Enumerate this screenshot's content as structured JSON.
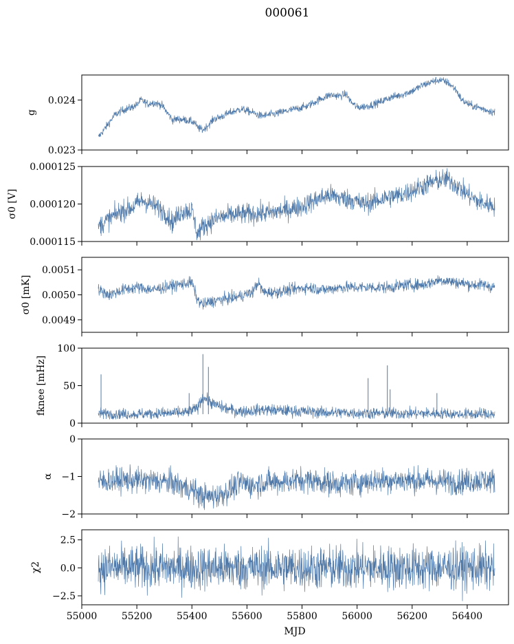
{
  "figure": {
    "title": "000061",
    "xlabel": "MJD",
    "line_color": "#4e78a8"
  },
  "chart_data": [
    {
      "type": "line",
      "ylabel": "g",
      "xlim": [
        55000,
        56550
      ],
      "ylim": [
        0.023,
        0.0245
      ],
      "yticks": [
        0.023,
        0.024
      ],
      "ytick_labels": [
        "0.023",
        "0.024"
      ],
      "series": [
        {
          "x": [
            55060,
            55080,
            55100,
            55120,
            55150,
            55180,
            55200,
            55215,
            55240,
            55260,
            55290,
            55310,
            55330,
            55350,
            55380,
            55410,
            55420,
            55440,
            55460,
            55480,
            55500,
            55540,
            55580,
            55620,
            55650,
            55700,
            55760,
            55820,
            55860,
            55900,
            55940,
            55960,
            55980,
            56000,
            56040,
            56080,
            56120,
            56160,
            56200,
            56240,
            56280,
            56300,
            56330,
            56360,
            56380,
            56410,
            56440,
            56470,
            56500
          ],
          "y": [
            0.02325,
            0.0234,
            0.02355,
            0.0237,
            0.0238,
            0.02385,
            0.0239,
            0.024,
            0.02392,
            0.02395,
            0.0239,
            0.02375,
            0.0236,
            0.02362,
            0.0236,
            0.02355,
            0.02345,
            0.0234,
            0.0235,
            0.02362,
            0.02365,
            0.02375,
            0.02382,
            0.02375,
            0.02368,
            0.02372,
            0.0238,
            0.02388,
            0.024,
            0.0241,
            0.02408,
            0.02412,
            0.02395,
            0.02385,
            0.02388,
            0.02395,
            0.02405,
            0.0241,
            0.02418,
            0.0243,
            0.02438,
            0.0244,
            0.02435,
            0.0242,
            0.024,
            0.0239,
            0.02385,
            0.0238,
            0.02375
          ],
          "noise": 4e-05
        }
      ]
    },
    {
      "type": "line",
      "ylabel": "σ0 [V]",
      "xlim": [
        55000,
        56550
      ],
      "ylim": [
        0.000115,
        0.000125
      ],
      "yticks": [
        0.000115,
        0.00012,
        0.000125
      ],
      "ytick_labels": [
        "0.000115",
        "0.000120",
        "0.000125"
      ],
      "series": [
        {
          "x": [
            55060,
            55100,
            55140,
            55180,
            55220,
            55250,
            55300,
            55330,
            55360,
            55400,
            55420,
            55440,
            55460,
            55500,
            55560,
            55620,
            55680,
            55740,
            55800,
            55860,
            55900,
            55940,
            55980,
            56020,
            56060,
            56100,
            56160,
            56200,
            56260,
            56300,
            56330,
            56360,
            56400,
            56440,
            56470,
            56500
          ],
          "y": [
            0.000117,
            0.000118,
            0.000119,
            0.0001195,
            0.0001205,
            0.00012,
            0.000119,
            0.0001175,
            0.000119,
            0.0001192,
            0.000116,
            0.000117,
            0.0001175,
            0.0001182,
            0.0001186,
            0.0001187,
            0.0001188,
            0.0001192,
            0.0001197,
            0.0001207,
            0.0001212,
            0.0001208,
            0.0001206,
            0.00012,
            0.0001203,
            0.0001208,
            0.0001212,
            0.0001218,
            0.0001227,
            0.0001232,
            0.0001233,
            0.0001225,
            0.0001213,
            0.0001203,
            0.00012,
            0.0001198
          ],
          "noise": 7e-07
        }
      ]
    },
    {
      "type": "line",
      "ylabel": "σ0 [mK]",
      "xlim": [
        55000,
        56550
      ],
      "ylim": [
        0.00485,
        0.00515
      ],
      "yticks": [
        0.0049,
        0.005,
        0.0051
      ],
      "ytick_labels": [
        "0.0049",
        "0.0050",
        "0.0051"
      ],
      "series": [
        {
          "x": [
            55060,
            55100,
            55150,
            55200,
            55260,
            55300,
            55350,
            55400,
            55420,
            55440,
            55460,
            55500,
            55560,
            55620,
            55640,
            55660,
            55700,
            55760,
            55820,
            55880,
            55940,
            56000,
            56060,
            56120,
            56180,
            56240,
            56300,
            56360,
            56420,
            56460,
            56500
          ],
          "y": [
            0.00502,
            0.005,
            0.00502,
            0.00503,
            0.00502,
            0.00503,
            0.00504,
            0.00505,
            0.00498,
            0.00496,
            0.00497,
            0.00498,
            0.00499,
            0.00501,
            0.00505,
            0.00501,
            0.00501,
            0.00502,
            0.00503,
            0.00502,
            0.00503,
            0.00503,
            0.00503,
            0.00503,
            0.00504,
            0.00504,
            0.00506,
            0.00505,
            0.00504,
            0.00504,
            0.00503
          ],
          "noise": 1.2e-05
        }
      ]
    },
    {
      "type": "line",
      "ylabel": "fknee [mHz]",
      "xlim": [
        55000,
        56550
      ],
      "ylim": [
        0,
        100
      ],
      "yticks": [
        0,
        50,
        100
      ],
      "ytick_labels": [
        "0",
        "50",
        "100"
      ],
      "series": [
        {
          "x": [
            55060,
            55120,
            55200,
            55300,
            55380,
            55420,
            55440,
            55460,
            55480,
            55520,
            55560,
            55600,
            55660,
            55720,
            55780,
            55840,
            55900,
            55960,
            56040,
            56120,
            56200,
            56280,
            56360,
            56440,
            56500
          ],
          "y": [
            13,
            12,
            12,
            13,
            14,
            20,
            35,
            30,
            25,
            20,
            16,
            16,
            18,
            17,
            16,
            15,
            14,
            14,
            13,
            13,
            13,
            13,
            12,
            12,
            12
          ],
          "noise": 4
        }
      ],
      "spikes": [
        [
          55070,
          65
        ],
        [
          55440,
          92
        ],
        [
          55460,
          75
        ],
        [
          55390,
          40
        ],
        [
          56040,
          60
        ],
        [
          56110,
          77
        ],
        [
          56120,
          45
        ],
        [
          56290,
          40
        ]
      ]
    },
    {
      "type": "line",
      "ylabel": "α",
      "xlim": [
        55000,
        56550
      ],
      "ylim": [
        -2,
        0
      ],
      "yticks": [
        -2,
        -1,
        0
      ],
      "ytick_labels": [
        "−2",
        "−1",
        "0"
      ],
      "series": [
        {
          "x": [
            55060,
            55120,
            55200,
            55260,
            55320,
            55360,
            55400,
            55430,
            55460,
            55500,
            55540,
            55580,
            55620,
            55660,
            55720,
            55780,
            55840,
            55900,
            55960,
            56040,
            56120,
            56200,
            56280,
            56360,
            56440,
            56500
          ],
          "y": [
            -1.15,
            -1.1,
            -1.1,
            -1.12,
            -1.15,
            -1.25,
            -1.35,
            -1.5,
            -1.55,
            -1.5,
            -1.35,
            -1.15,
            -1.25,
            -1.15,
            -1.15,
            -1.1,
            -1.1,
            -1.18,
            -1.2,
            -1.12,
            -1.1,
            -1.1,
            -1.12,
            -1.15,
            -1.1,
            -1.12
          ],
          "noise": 0.17
        }
      ]
    },
    {
      "type": "line",
      "ylabel": "χ2",
      "xlim": [
        55000,
        56550
      ],
      "ylim": [
        -3.3,
        3.4
      ],
      "yticks": [
        -2.5,
        0,
        2.5
      ],
      "ytick_labels": [
        "−2.5",
        "0.0",
        "2.5"
      ],
      "xticks": [
        55000,
        55200,
        55400,
        55600,
        55800,
        56000,
        56200,
        56400
      ],
      "xtick_labels": [
        "55000",
        "55200",
        "55400",
        "55600",
        "55800",
        "56000",
        "56200",
        "56400"
      ],
      "series": [
        {
          "x": [
            55060,
            56500
          ],
          "y": [
            0.0,
            0.0
          ],
          "noise": 1.0
        }
      ]
    }
  ]
}
